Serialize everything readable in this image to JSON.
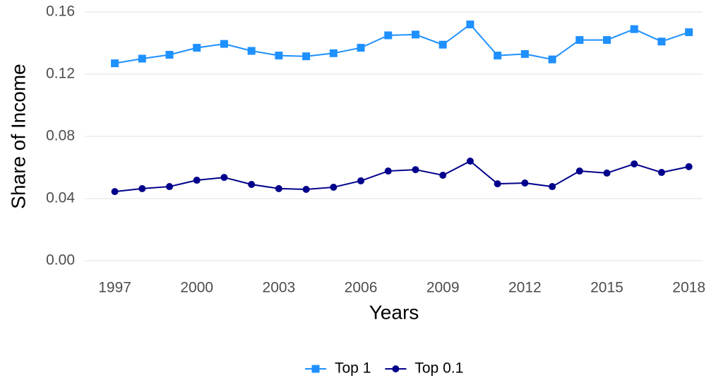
{
  "chart_data": {
    "type": "line",
    "x_label": "Years",
    "y_label": "Share of Income",
    "x": [
      1997,
      1998,
      1999,
      2000,
      2001,
      2002,
      2003,
      2004,
      2005,
      2006,
      2007,
      2008,
      2009,
      2010,
      2011,
      2012,
      2013,
      2014,
      2015,
      2016,
      2017,
      2018
    ],
    "series": [
      {
        "name": "Top 1",
        "color": "#1e90ff",
        "marker": "square",
        "values": [
          0.127,
          0.13,
          0.1325,
          0.137,
          0.1395,
          0.135,
          0.132,
          0.1315,
          0.1335,
          0.137,
          0.145,
          0.1455,
          0.139,
          0.152,
          0.132,
          0.133,
          0.1295,
          0.142,
          0.142,
          0.149,
          0.141,
          0.147
        ]
      },
      {
        "name": "Top 0.1",
        "color": "#00008b",
        "marker": "circle",
        "values": [
          0.0445,
          0.0464,
          0.0477,
          0.0518,
          0.0536,
          0.0491,
          0.0464,
          0.0459,
          0.0473,
          0.0514,
          0.0577,
          0.0586,
          0.055,
          0.0641,
          0.0495,
          0.05,
          0.0477,
          0.0577,
          0.0564,
          0.0623,
          0.0568,
          0.0605
        ]
      }
    ],
    "xlim": [
      1995.9,
      2018.5
    ],
    "xticks": [
      1997,
      2000,
      2003,
      2006,
      2009,
      2012,
      2015,
      2018
    ],
    "ylim": [
      0,
      0.16
    ],
    "yticks": [
      {
        "value": 0,
        "label": "0.00"
      },
      {
        "value": 0.04,
        "label": "0.04"
      },
      {
        "value": 0.08,
        "label": "0.08"
      },
      {
        "value": 0.12,
        "label": "0.12"
      },
      {
        "value": 0.16,
        "label": "0.16"
      }
    ],
    "grid": true,
    "legend_position": "bottom"
  }
}
